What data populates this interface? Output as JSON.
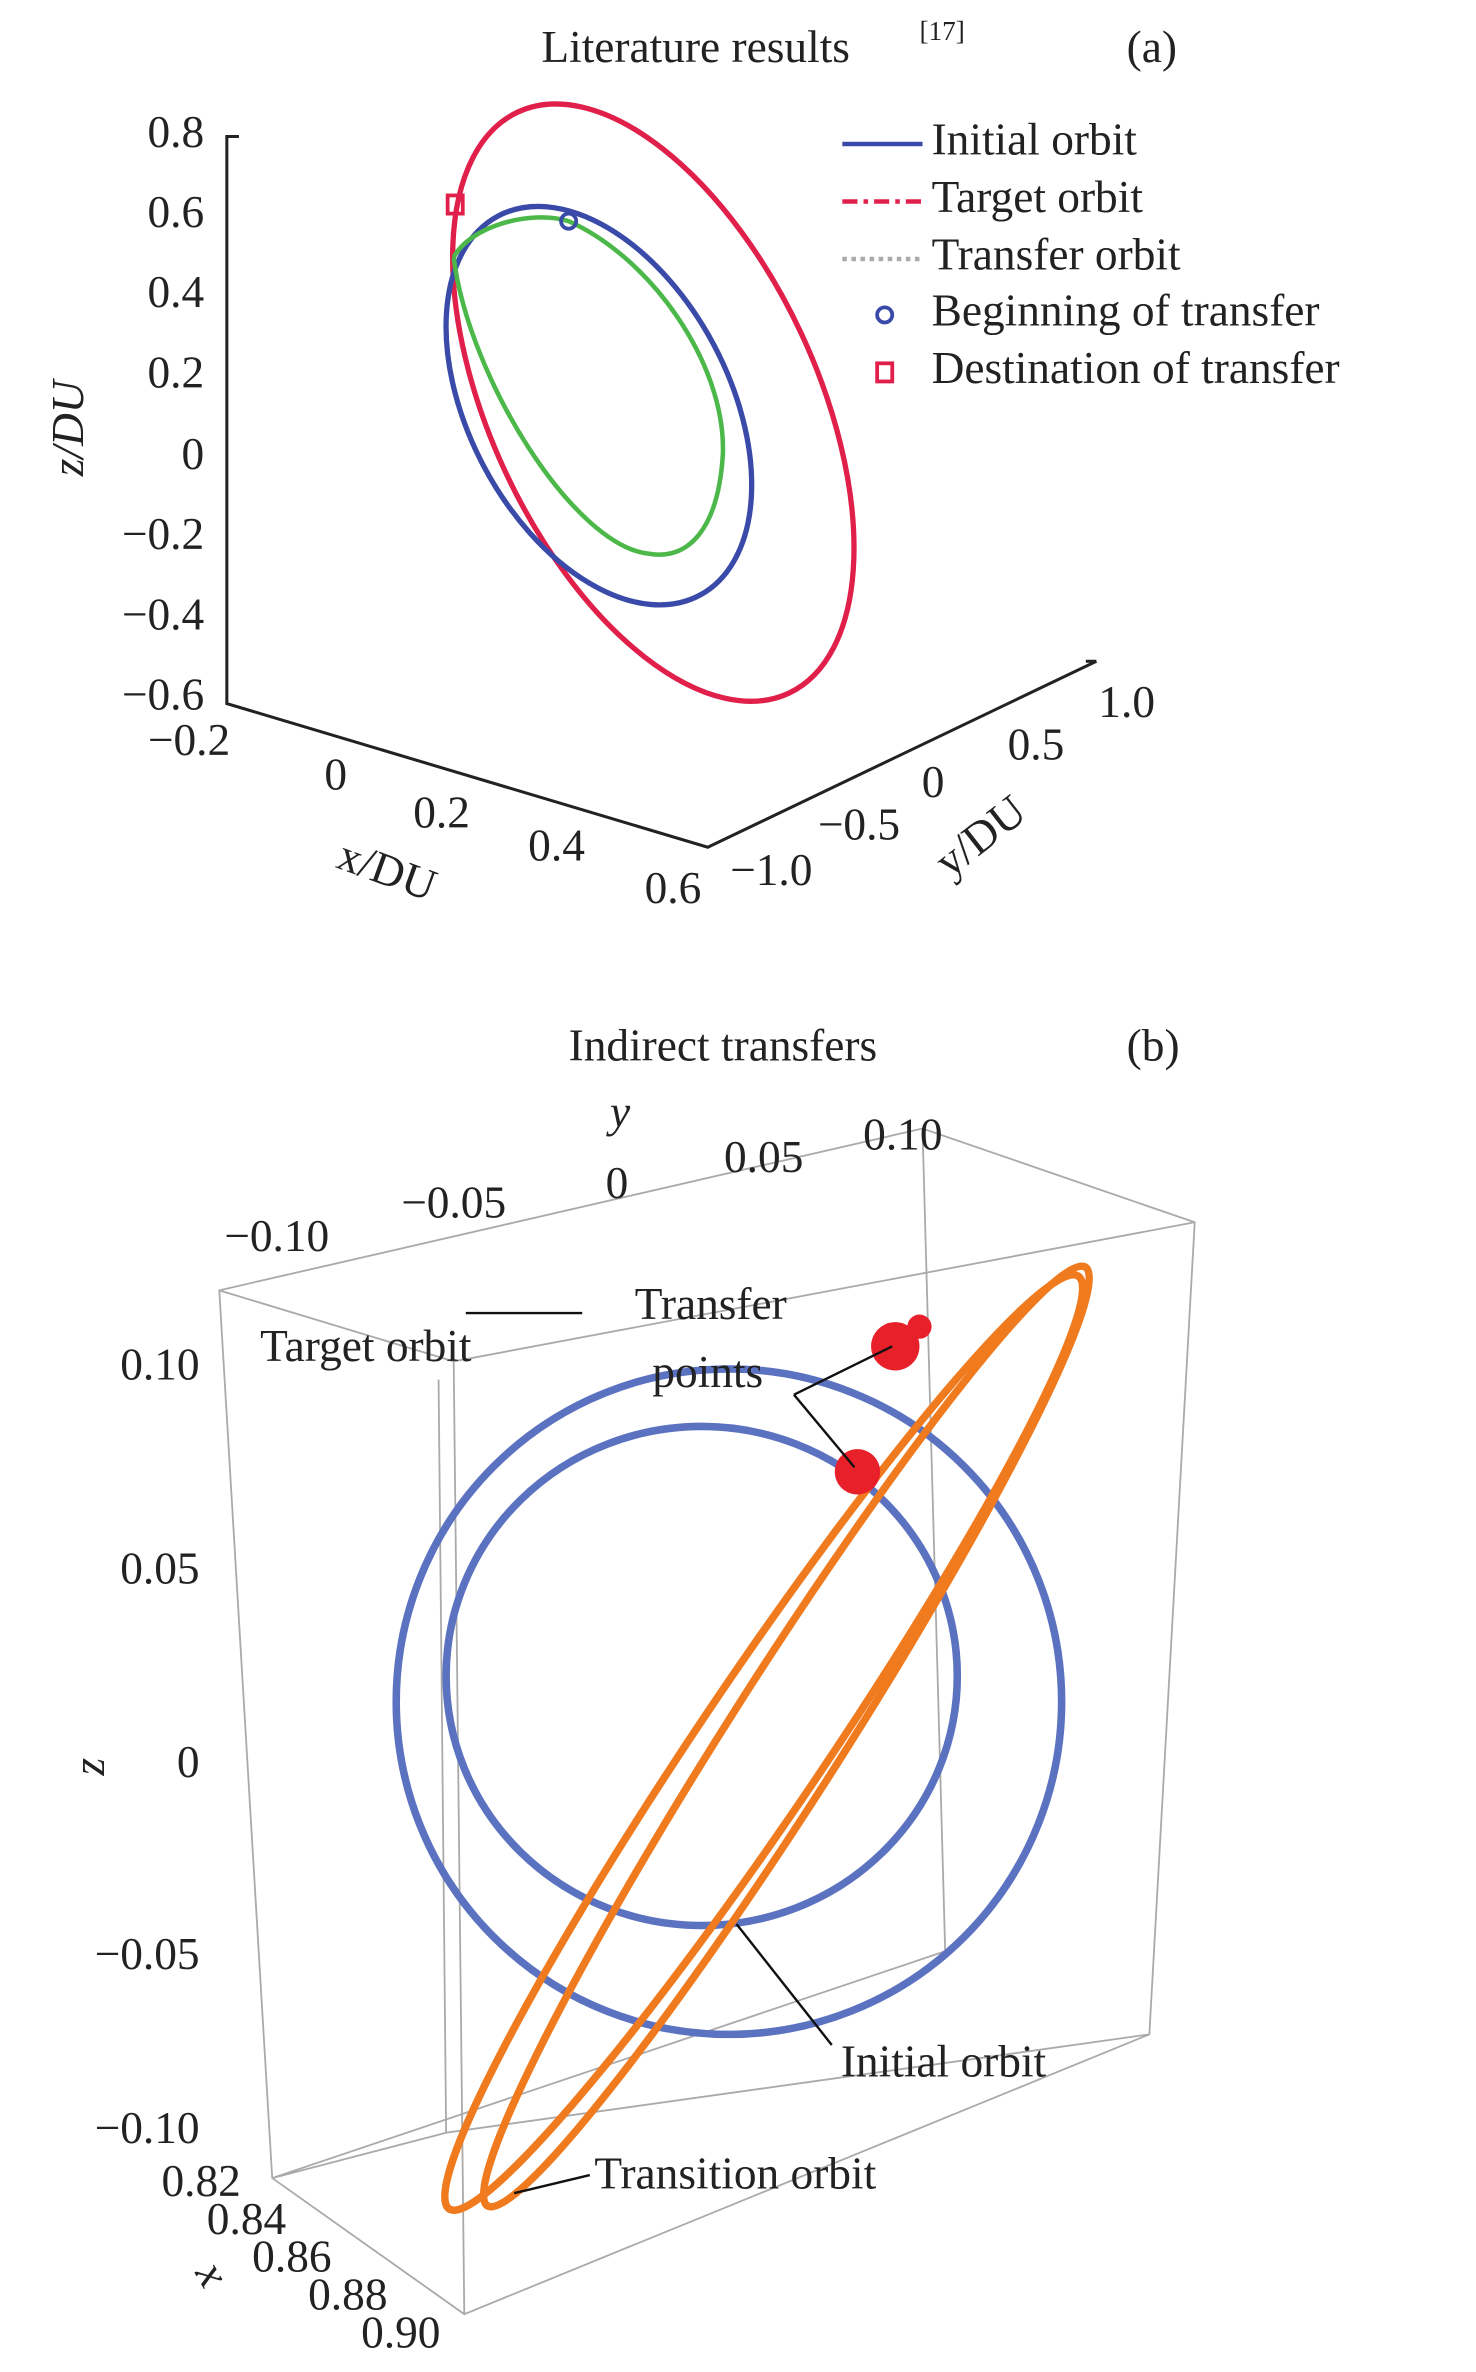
{
  "panels": [
    {
      "title": "Literature results",
      "title_sup": "[17]",
      "tag": "(a)",
      "z_axis": {
        "label": "z/DU",
        "ticks": [
          "0.8",
          "0.6",
          "0.4",
          "0.2",
          "0",
          "−0.2",
          "−0.4",
          "−0.6"
        ]
      },
      "x_axis": {
        "label": "x/DU",
        "ticks": [
          "−0.2",
          "0",
          "0.2",
          "0.4",
          "0.6"
        ]
      },
      "y_axis": {
        "label": "y/DU",
        "ticks": [
          "−1.0",
          "−0.5",
          "0",
          "0.5",
          "1.0"
        ]
      },
      "legend": [
        "Initial orbit",
        "Target orbit",
        "Transfer orbit",
        "Beginning of transfer",
        "Destination of transfer"
      ]
    },
    {
      "title": "Indirect transfers",
      "tag": "(b)",
      "y_axis": {
        "label": "y",
        "ticks": [
          "−0.10",
          "−0.05",
          "0",
          "0.05",
          "0.10"
        ]
      },
      "z_axis": {
        "label": "z",
        "ticks": [
          "0.10",
          "0.05",
          "0",
          "−0.05",
          "−0.10"
        ]
      },
      "x_axis": {
        "label": "x",
        "ticks": [
          "0.82",
          "0.84",
          "0.86",
          "0.88",
          "0.90"
        ]
      },
      "annotations": [
        "Target orbit",
        "Transfer",
        "points",
        "Initial orbit",
        "Transition orbit"
      ]
    }
  ]
}
